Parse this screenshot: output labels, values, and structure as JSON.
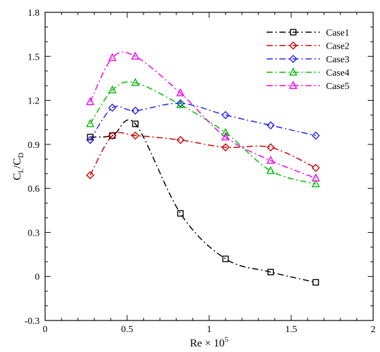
{
  "chart_data": {
    "type": "scatter",
    "xlabel": {
      "base": "Re × 10",
      "sup": "5"
    },
    "ylabel": {
      "c1": "C",
      "s1": "L",
      "slash": "/C",
      "s2": "D"
    },
    "xlim": [
      0,
      2
    ],
    "ylim": [
      -0.3,
      1.8
    ],
    "xticks": [
      0,
      0.5,
      1,
      1.5,
      2
    ],
    "xtick_labels": [
      "0",
      "0.5",
      "1",
      "1.5",
      "2"
    ],
    "yticks": [
      -0.3,
      0,
      0.3,
      0.6,
      0.9,
      1.2,
      1.5,
      1.8
    ],
    "ytick_labels": [
      "-0.3",
      "0",
      "0.3",
      "0.6",
      "0.9",
      "1.2",
      "1.5",
      "1.8"
    ],
    "grid": false,
    "legend_position": "top-right",
    "series": [
      {
        "name": "Case1",
        "color": "#000000",
        "marker": "square",
        "x": [
          0.275,
          0.41,
          0.55,
          0.825,
          1.1,
          1.375,
          1.65
        ],
        "y": [
          0.95,
          0.96,
          1.04,
          0.43,
          0.12,
          0.03,
          -0.04
        ]
      },
      {
        "name": "Case2",
        "color": "#cc0000",
        "marker": "diamond",
        "x": [
          0.275,
          0.41,
          0.55,
          0.825,
          1.1,
          1.375,
          1.65
        ],
        "y": [
          0.69,
          0.96,
          0.96,
          0.93,
          0.88,
          0.88,
          0.74
        ]
      },
      {
        "name": "Case3",
        "color": "#2222ee",
        "marker": "diamond",
        "x": [
          0.275,
          0.41,
          0.55,
          0.825,
          1.1,
          1.375,
          1.65
        ],
        "y": [
          0.93,
          1.15,
          1.13,
          1.18,
          1.1,
          1.03,
          0.96
        ]
      },
      {
        "name": "Case4",
        "color": "#00bb00",
        "marker": "triangle",
        "x": [
          0.275,
          0.41,
          0.55,
          0.825,
          1.1,
          1.375,
          1.65
        ],
        "y": [
          1.04,
          1.27,
          1.32,
          1.17,
          0.98,
          0.72,
          0.63
        ]
      },
      {
        "name": "Case5",
        "color": "#ee00ee",
        "marker": "triangle",
        "x": [
          0.275,
          0.41,
          0.55,
          0.825,
          1.1,
          1.375,
          1.65
        ],
        "y": [
          1.19,
          1.49,
          1.5,
          1.25,
          0.95,
          0.79,
          0.67
        ]
      }
    ]
  }
}
